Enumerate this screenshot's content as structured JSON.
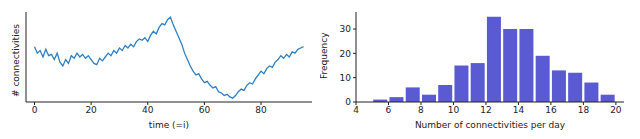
{
  "chart_data": [
    {
      "type": "line",
      "x_label": "time (=i)",
      "y_label": "# connectivities",
      "x": [
        0,
        1,
        2,
        3,
        4,
        5,
        6,
        7,
        8,
        9,
        10,
        11,
        12,
        13,
        14,
        15,
        16,
        17,
        18,
        19,
        20,
        21,
        22,
        23,
        24,
        25,
        26,
        27,
        28,
        29,
        30,
        31,
        32,
        33,
        34,
        35,
        36,
        37,
        38,
        39,
        40,
        41,
        42,
        43,
        44,
        45,
        46,
        47,
        48,
        49,
        50,
        51,
        52,
        53,
        54,
        55,
        56,
        57,
        58,
        59,
        60,
        61,
        62,
        63,
        64,
        65,
        66,
        67,
        68,
        69,
        70,
        71,
        72,
        73,
        74,
        75,
        76,
        77,
        78,
        79,
        80,
        81,
        82,
        83,
        84,
        85,
        86,
        87,
        88,
        89,
        90,
        91,
        92,
        93,
        94,
        95
      ],
      "values": [
        43,
        38,
        40,
        35,
        41,
        36,
        37,
        33,
        38,
        31,
        28,
        33,
        30,
        36,
        34,
        38,
        35,
        37,
        34,
        36,
        33,
        30,
        29,
        34,
        32,
        35,
        38,
        36,
        40,
        38,
        42,
        40,
        44,
        42,
        45,
        43,
        47,
        49,
        48,
        50,
        47,
        52,
        55,
        53,
        58,
        61,
        60,
        64,
        66,
        60,
        55,
        50,
        45,
        38,
        33,
        28,
        24,
        21,
        22,
        18,
        15,
        16,
        13,
        11,
        12,
        8,
        7,
        5,
        6,
        4,
        3,
        5,
        8,
        10,
        9,
        13,
        15,
        14,
        18,
        21,
        24,
        22,
        26,
        28,
        27,
        31,
        33,
        36,
        34,
        37,
        35,
        39,
        38,
        41,
        42,
        43
      ],
      "color": "#2f7fc1",
      "xlim": [
        -3,
        98
      ],
      "xticks": [
        0,
        20,
        40,
        60,
        80
      ],
      "ylim": [
        0,
        70
      ],
      "tick_labels": "x",
      "grid": false
    },
    {
      "type": "histogram",
      "x_label": "Number of connectivities per day",
      "y_label": "Frequency",
      "bins": [
        5,
        6,
        7,
        8,
        9,
        10,
        11,
        12,
        13,
        14,
        15,
        16,
        17,
        18,
        19,
        20
      ],
      "values": [
        1,
        2,
        6,
        3,
        7,
        15,
        16,
        35,
        30,
        30,
        19,
        13,
        12,
        8,
        3
      ],
      "color": "#5a5ad2",
      "xlim": [
        4,
        20.5
      ],
      "xticks": [
        4,
        6,
        8,
        10,
        12,
        14,
        16,
        18,
        20
      ],
      "ylim": [
        0,
        37
      ],
      "yticks": [
        0,
        10,
        20,
        30
      ],
      "grid": false
    }
  ]
}
